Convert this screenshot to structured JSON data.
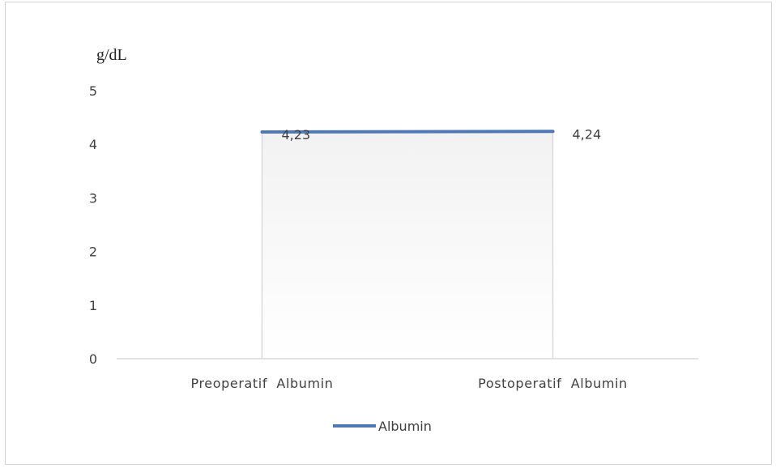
{
  "chart_data": {
    "type": "line",
    "ylabel": "g/dL",
    "ylim": [
      0,
      5
    ],
    "yticks": [
      "0",
      "1",
      "2",
      "3",
      "4",
      "5"
    ],
    "categories": [
      "Preoperatif  Albumin",
      "Postoperatif  Albumin"
    ],
    "series": [
      {
        "name": "Albumin",
        "values": [
          4.23,
          4.24
        ],
        "data_labels": [
          "4,23",
          "4,24"
        ],
        "color": "#4e79b4"
      }
    ],
    "grid": false,
    "legend_position": "bottom",
    "colors": {
      "drop_lines": "#d9d9d9",
      "axis": "#d9d9d9",
      "plot_gradient_top": "#f2f2f2",
      "plot_gradient_bottom": "#ffffff"
    }
  }
}
